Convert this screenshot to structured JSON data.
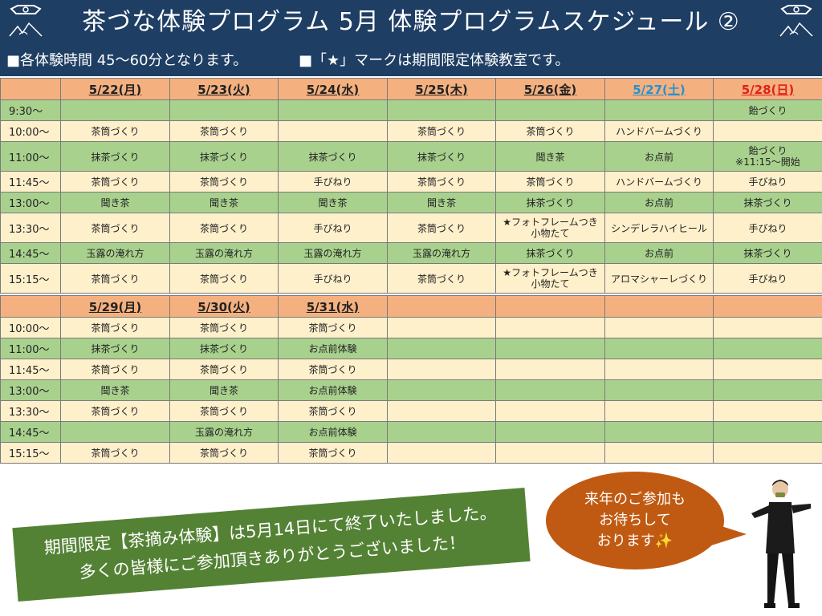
{
  "header": {
    "title": "茶づな体験プログラム 5月 体験プログラムスケジュール ②"
  },
  "notes": {
    "duration": "■各体験時間 45～60分となります。",
    "star": "■「★」マークは期間限定体験教室です。"
  },
  "week1": {
    "dates": [
      "5/22(月)",
      "5/23(火)",
      "5/24(水)",
      "5/25(木)",
      "5/26(金)",
      "5/27(土)",
      "5/28(日)"
    ],
    "rows": [
      {
        "time": "9:30～",
        "shade": "g",
        "cells": [
          "",
          "",
          "",
          "",
          "",
          "",
          "飴づくり"
        ]
      },
      {
        "time": "10:00～",
        "shade": "y",
        "cells": [
          "茶筒づくり",
          "茶筒づくり",
          "",
          "茶筒づくり",
          "茶筒づくり",
          "ハンドバームづくり",
          ""
        ]
      },
      {
        "time": "11:00～",
        "shade": "g",
        "cells": [
          "抹茶づくり",
          "抹茶づくり",
          "抹茶づくり",
          "抹茶づくり",
          "聞き茶",
          "お点前",
          "飴づくり\n※11:15～開始"
        ]
      },
      {
        "time": "11:45～",
        "shade": "y",
        "cells": [
          "茶筒づくり",
          "茶筒づくり",
          "手びねり",
          "茶筒づくり",
          "茶筒づくり",
          "ハンドバームづくり",
          "手びねり"
        ]
      },
      {
        "time": "13:00～",
        "shade": "g",
        "cells": [
          "聞き茶",
          "聞き茶",
          "聞き茶",
          "聞き茶",
          "抹茶づくり",
          "お点前",
          "抹茶づくり"
        ]
      },
      {
        "time": "13:30～",
        "shade": "y",
        "cells": [
          "茶筒づくり",
          "茶筒づくり",
          "手びねり",
          "茶筒づくり",
          "★フォトフレームつき\n小物たて",
          "シンデレラハイヒール",
          "手びねり"
        ]
      },
      {
        "time": "14:45～",
        "shade": "g",
        "cells": [
          "玉露の淹れ方",
          "玉露の淹れ方",
          "玉露の淹れ方",
          "玉露の淹れ方",
          "抹茶づくり",
          "お点前",
          "抹茶づくり"
        ]
      },
      {
        "time": "15:15～",
        "shade": "y",
        "cells": [
          "茶筒づくり",
          "茶筒づくり",
          "手びねり",
          "茶筒づくり",
          "★フォトフレームつき\n小物たて",
          "アロマシャーレづくり",
          "手びねり"
        ]
      }
    ]
  },
  "week2": {
    "dates": [
      "5/29(月)",
      "5/30(火)",
      "5/31(水)",
      "",
      "",
      "",
      ""
    ],
    "rows": [
      {
        "time": "10:00～",
        "shade": "y",
        "cells": [
          "茶筒づくり",
          "茶筒づくり",
          "茶筒づくり",
          "",
          "",
          "",
          ""
        ]
      },
      {
        "time": "11:00～",
        "shade": "g",
        "cells": [
          "抹茶づくり",
          "抹茶づくり",
          "お点前体験",
          "",
          "",
          "",
          ""
        ]
      },
      {
        "time": "11:45～",
        "shade": "y",
        "cells": [
          "茶筒づくり",
          "茶筒づくり",
          "茶筒づくり",
          "",
          "",
          "",
          ""
        ]
      },
      {
        "time": "13:00～",
        "shade": "g",
        "cells": [
          "聞き茶",
          "聞き茶",
          "お点前体験",
          "",
          "",
          "",
          ""
        ]
      },
      {
        "time": "13:30～",
        "shade": "y",
        "cells": [
          "茶筒づくり",
          "茶筒づくり",
          "茶筒づくり",
          "",
          "",
          "",
          ""
        ]
      },
      {
        "time": "14:45～",
        "shade": "g",
        "cells": [
          "",
          "玉露の淹れ方",
          "お点前体験",
          "",
          "",
          "",
          ""
        ]
      },
      {
        "time": "15:15～",
        "shade": "y",
        "cells": [
          "茶筒づくり",
          "茶筒づくり",
          "茶筒づくり",
          "",
          "",
          "",
          ""
        ]
      }
    ]
  },
  "banner": {
    "line1": "期間限定【茶摘み体験】は5月14日にて終了いたしました。",
    "line2": "多くの皆様にご参加頂きありがとうございました！"
  },
  "bubble": {
    "line1": "来年のご参加も",
    "line2": "お待ちして",
    "line3": "おります✨"
  },
  "colors": {
    "navy": "#1e3e63",
    "green_row": "#a9d18e",
    "cream_row": "#fff0cc",
    "date_header": "#f4b17f",
    "saturday": "#2a8fcf",
    "sunday": "#e0211a",
    "banner": "#548235",
    "bubble": "#c05a12"
  }
}
